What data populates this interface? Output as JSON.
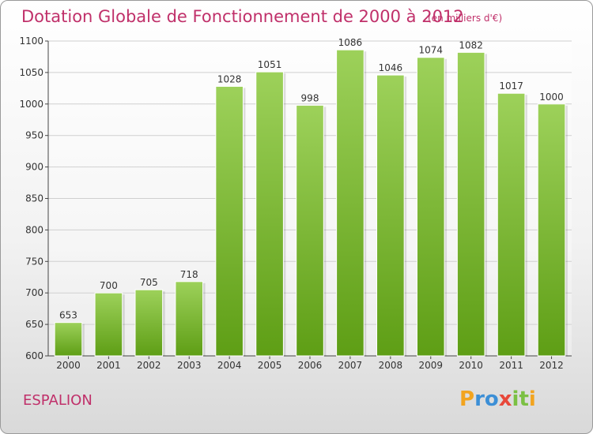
{
  "chart_data": {
    "type": "bar",
    "title": "Dotation Globale de Fonctionnement de 2000 à 2012",
    "subtitle": "(en milliers d'€)",
    "categories": [
      "2000",
      "2001",
      "2002",
      "2003",
      "2004",
      "2005",
      "2006",
      "2007",
      "2008",
      "2009",
      "2010",
      "2011",
      "2012"
    ],
    "values": [
      653,
      700,
      705,
      718,
      1028,
      1051,
      998,
      1086,
      1046,
      1074,
      1082,
      1017,
      1000
    ],
    "ylim": [
      600,
      1100
    ],
    "yticks": [
      600,
      650,
      700,
      750,
      800,
      850,
      900,
      950,
      1000,
      1050,
      1100
    ],
    "grid": true,
    "xlabel": "",
    "ylabel": ""
  },
  "footer": {
    "city": "ESPALION",
    "logo_text": "Proxiti"
  },
  "colors": {
    "title": "#c0306a",
    "bar_top": "#9dd15a",
    "bar_bottom": "#5e9e15",
    "grid": "#d0d0d0"
  }
}
